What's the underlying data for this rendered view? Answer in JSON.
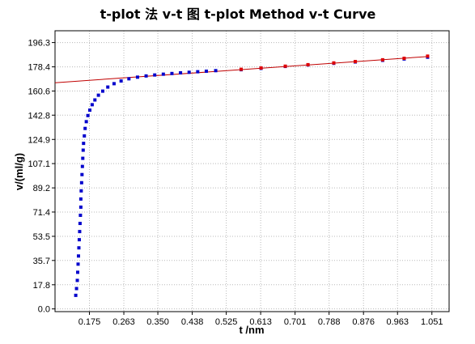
{
  "chart_data": {
    "type": "scatter",
    "title": "t-plot 法 v-t 图 t-plot Method v-t Curve",
    "xlabel": "t /nm",
    "ylabel": "v/(ml/g)",
    "xlim": [
      0.087,
      1.095
    ],
    "ylim": [
      -2.0,
      205.0
    ],
    "x_ticks": [
      0.175,
      0.263,
      0.35,
      0.438,
      0.525,
      0.613,
      0.701,
      0.788,
      0.876,
      0.963,
      1.051
    ],
    "x_tick_labels": [
      "0.175",
      "0.263",
      "0.350",
      "0.438",
      "0.525",
      "0.613",
      "0.701",
      "0.788",
      "0.876",
      "0.963",
      "1.051"
    ],
    "y_ticks": [
      0.0,
      17.8,
      35.7,
      53.5,
      71.4,
      89.2,
      107.1,
      124.9,
      142.8,
      160.6,
      178.4,
      196.3
    ],
    "y_tick_labels": [
      "0.0",
      "17.8",
      "35.7",
      "53.5",
      "71.4",
      "89.2",
      "107.1",
      "124.9",
      "142.8",
      "160.6",
      "178.4",
      "196.3"
    ],
    "grid": true,
    "legend": "none",
    "colors": {
      "data": "#0000cc",
      "fit_points": "#e00000",
      "fit_line": "#c00000"
    },
    "series": [
      {
        "points": [
          [
            0.14,
            10.0
          ],
          [
            0.142,
            15.0
          ],
          [
            0.144,
            21.0
          ],
          [
            0.145,
            27.0
          ],
          [
            0.146,
            33.0
          ],
          [
            0.147,
            39.0
          ],
          [
            0.148,
            45.0
          ],
          [
            0.149,
            51.0
          ],
          [
            0.15,
            57.0
          ],
          [
            0.151,
            63.0
          ],
          [
            0.152,
            69.0
          ],
          [
            0.153,
            75.0
          ],
          [
            0.153,
            81.0
          ],
          [
            0.154,
            87.0
          ],
          [
            0.155,
            93.0
          ],
          [
            0.156,
            99.0
          ],
          [
            0.157,
            105.0
          ],
          [
            0.158,
            111.0
          ],
          [
            0.159,
            117.0
          ],
          [
            0.16,
            122.0
          ],
          [
            0.162,
            127.5
          ],
          [
            0.164,
            133.0
          ],
          [
            0.167,
            138.0
          ],
          [
            0.171,
            142.5
          ],
          [
            0.176,
            146.5
          ],
          [
            0.182,
            150.5
          ],
          [
            0.189,
            154.0
          ],
          [
            0.198,
            157.5
          ],
          [
            0.209,
            160.5
          ],
          [
            0.222,
            163.5
          ],
          [
            0.238,
            166.0
          ],
          [
            0.256,
            168.0
          ],
          [
            0.276,
            169.6
          ],
          [
            0.298,
            170.8
          ],
          [
            0.32,
            171.7
          ],
          [
            0.342,
            172.4
          ],
          [
            0.364,
            173.0
          ],
          [
            0.386,
            173.5
          ],
          [
            0.408,
            174.0
          ],
          [
            0.43,
            174.4
          ],
          [
            0.452,
            174.8
          ],
          [
            0.474,
            175.2
          ],
          [
            0.498,
            175.6
          ]
        ]
      },
      {
        "points": [
          [
            0.563,
            176.3
          ],
          [
            0.614,
            177.3
          ],
          [
            0.676,
            178.7
          ],
          [
            0.734,
            179.8
          ],
          [
            0.8,
            181.0
          ],
          [
            0.855,
            182.0
          ],
          [
            0.925,
            183.2
          ],
          [
            0.98,
            184.2
          ],
          [
            1.04,
            185.5
          ]
        ]
      },
      {
        "points": [
          [
            0.563,
            176.6
          ],
          [
            0.614,
            177.6
          ],
          [
            0.676,
            178.9
          ],
          [
            0.734,
            180.0
          ],
          [
            0.8,
            181.3
          ],
          [
            0.855,
            182.3
          ],
          [
            0.925,
            183.6
          ],
          [
            0.98,
            184.7
          ],
          [
            1.04,
            186.3
          ]
        ]
      }
    ],
    "fit_line": {
      "x": [
        0.087,
        1.04
      ],
      "y": [
        166.7,
        186.0
      ]
    }
  }
}
